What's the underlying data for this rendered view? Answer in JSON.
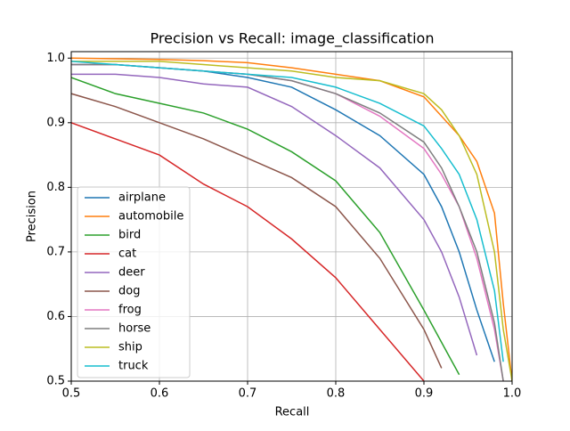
{
  "chart_data": {
    "type": "line",
    "title": "Precision vs Recall: image_classification",
    "x_label": "Recall",
    "y_label": "Precision",
    "x": [
      0.5,
      0.55,
      0.6,
      0.65,
      0.7,
      0.75,
      0.8,
      0.85,
      0.9,
      0.92,
      0.94,
      0.96,
      0.98,
      0.99,
      1.0
    ],
    "xlim": [
      0.5,
      1.0
    ],
    "ylim": [
      0.5,
      1.01
    ],
    "xticks": [
      0.5,
      0.6,
      0.7,
      0.8,
      0.9,
      {
        "value": 1.0,
        "label": "1.0"
      }
    ],
    "yticks": [
      0.5,
      0.6,
      0.7,
      0.8,
      0.9,
      {
        "value": 1.0,
        "label": "1.0"
      }
    ],
    "grid": true,
    "legend": "lower left",
    "series": [
      {
        "name": "airplane",
        "color": "#1f77b4",
        "values": [
          0.99,
          0.99,
          0.985,
          0.98,
          0.97,
          0.955,
          0.92,
          0.88,
          0.82,
          0.77,
          0.7,
          0.61,
          0.53,
          null,
          null
        ]
      },
      {
        "name": "automobile",
        "color": "#ff7f0e",
        "values": [
          1.0,
          0.999,
          0.998,
          0.996,
          0.993,
          0.985,
          0.975,
          0.965,
          0.94,
          0.91,
          0.88,
          0.84,
          0.76,
          0.62,
          0.5
        ]
      },
      {
        "name": "bird",
        "color": "#2ca02c",
        "values": [
          0.97,
          0.945,
          0.93,
          0.915,
          0.89,
          0.855,
          0.81,
          0.73,
          0.61,
          0.56,
          0.51,
          null,
          null,
          null,
          null
        ]
      },
      {
        "name": "cat",
        "color": "#d62728",
        "values": [
          0.9,
          0.875,
          0.85,
          0.805,
          0.77,
          0.72,
          0.66,
          0.58,
          0.5,
          null,
          null,
          null,
          null,
          null,
          null
        ]
      },
      {
        "name": "deer",
        "color": "#9467bd",
        "values": [
          0.975,
          0.975,
          0.97,
          0.96,
          0.955,
          0.925,
          0.88,
          0.83,
          0.75,
          0.7,
          0.63,
          0.54,
          null,
          null,
          null
        ]
      },
      {
        "name": "dog",
        "color": "#8c564b",
        "values": [
          0.945,
          0.925,
          0.9,
          0.875,
          0.845,
          0.815,
          0.77,
          0.69,
          0.58,
          0.52,
          null,
          null,
          null,
          null,
          null
        ]
      },
      {
        "name": "frog",
        "color": "#e377c2",
        "values": [
          0.99,
          0.99,
          0.985,
          0.98,
          0.975,
          0.965,
          0.945,
          0.91,
          0.86,
          0.82,
          0.77,
          0.69,
          0.58,
          0.5,
          null
        ]
      },
      {
        "name": "horse",
        "color": "#7f7f7f",
        "values": [
          0.99,
          0.99,
          0.985,
          0.98,
          0.975,
          0.965,
          0.945,
          0.915,
          0.87,
          0.83,
          0.77,
          0.7,
          0.59,
          0.5,
          null
        ]
      },
      {
        "name": "ship",
        "color": "#bcbd22",
        "values": [
          0.995,
          0.995,
          0.995,
          0.99,
          0.985,
          0.98,
          0.97,
          0.965,
          0.945,
          0.92,
          0.88,
          0.82,
          0.7,
          0.58,
          0.5
        ]
      },
      {
        "name": "truck",
        "color": "#17becf",
        "values": [
          0.995,
          0.99,
          0.985,
          0.98,
          0.975,
          0.97,
          0.955,
          0.93,
          0.895,
          0.86,
          0.82,
          0.75,
          0.64,
          0.53,
          null
        ]
      }
    ]
  }
}
